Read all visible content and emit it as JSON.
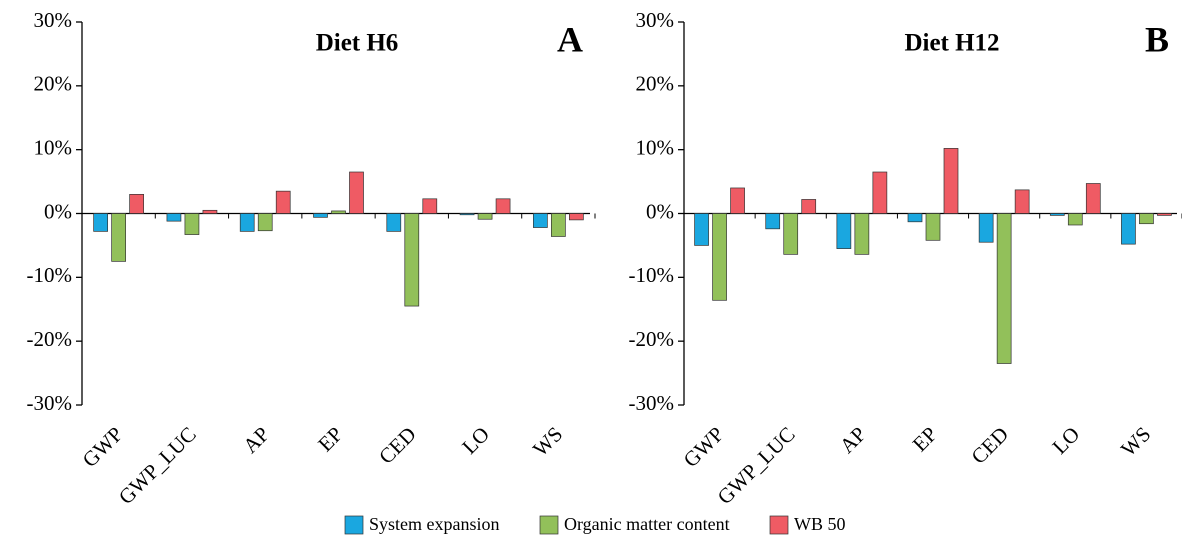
{
  "chart_data": [
    {
      "type": "bar",
      "title": "Diet H6",
      "annotation": "A",
      "categories": [
        "GWP",
        "GWP_LUC",
        "AP",
        "EP",
        "CED",
        "LO",
        "WS"
      ],
      "series": [
        {
          "name": "System expansion",
          "color": "#1aa7e0",
          "values": [
            -2.8,
            -1.2,
            -2.8,
            -0.6,
            -2.8,
            -0.2,
            -2.2
          ]
        },
        {
          "name": "Organic matter content",
          "color": "#92c05a",
          "values": [
            -7.5,
            -3.3,
            -2.7,
            0.4,
            -14.5,
            -0.9,
            -3.6
          ]
        },
        {
          "name": "WB 50",
          "color": "#ef5b64",
          "values": [
            3.0,
            0.5,
            3.5,
            6.5,
            2.3,
            2.3,
            -1.0
          ]
        }
      ],
      "ylim": [
        -30,
        30
      ],
      "yticks": [
        {
          "value": -30,
          "label": "-30%"
        },
        {
          "value": -20,
          "label": "-20%"
        },
        {
          "value": -10,
          "label": "-10%"
        },
        {
          "value": 0,
          "label": "0%"
        },
        {
          "value": 10,
          "label": "10%"
        },
        {
          "value": 20,
          "label": "20%"
        },
        {
          "value": 30,
          "label": "30%"
        }
      ]
    },
    {
      "type": "bar",
      "title": "Diet H12",
      "annotation": "B",
      "categories": [
        "GWP",
        "GWP_LUC",
        "AP",
        "EP",
        "CED",
        "LO",
        "WS"
      ],
      "series": [
        {
          "values": [
            -5.0,
            -2.4,
            -5.5,
            -1.3,
            -4.5,
            -0.3,
            -4.8
          ]
        },
        {
          "values": [
            -13.6,
            -6.4,
            -6.4,
            -4.2,
            -23.5,
            -1.8,
            -1.6
          ]
        },
        {
          "values": [
            4.0,
            2.2,
            6.5,
            10.2,
            3.7,
            4.7,
            -0.3
          ]
        }
      ],
      "ylim": [
        -30,
        30
      ],
      "yticks": [
        {
          "value": -30,
          "label": "-30%"
        },
        {
          "value": -20,
          "label": "-20%"
        },
        {
          "value": -10,
          "label": "-10%"
        },
        {
          "value": 0,
          "label": "0%"
        },
        {
          "value": 10,
          "label": "10%"
        },
        {
          "value": 20,
          "label": "20%"
        },
        {
          "value": 30,
          "label": "30%"
        }
      ]
    }
  ]
}
